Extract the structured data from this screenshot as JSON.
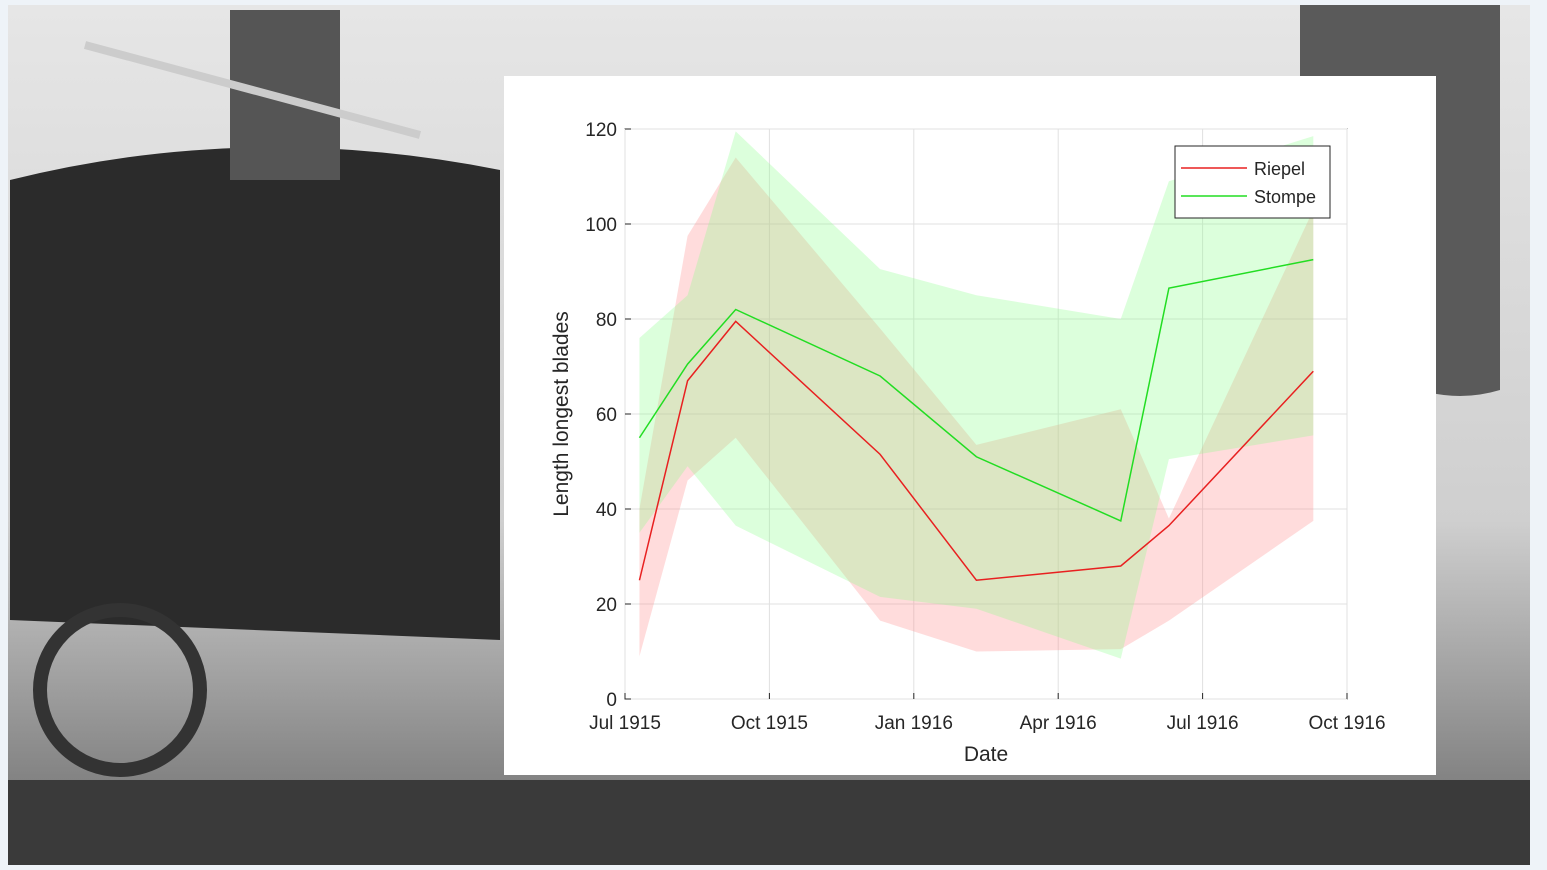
{
  "chart_data": {
    "type": "line-band",
    "x_label": "Date",
    "y_label": "Length longest blades",
    "x": [
      "1915-07",
      "1915-08",
      "1915-09",
      "1915-12",
      "1916-02",
      "1916-05",
      "1916-06",
      "1916-09"
    ],
    "xlim": [
      "1915-07",
      "1916-10"
    ],
    "xticks": [
      {
        "value": "1915-07",
        "label": "Jul 1915"
      },
      {
        "value": "1915-10",
        "label": "Oct 1915"
      },
      {
        "value": "1916-01",
        "label": "Jan 1916"
      },
      {
        "value": "1916-04",
        "label": "Apr 1916"
      },
      {
        "value": "1916-07",
        "label": "Jul 1916"
      },
      {
        "value": "1916-10",
        "label": "Oct 1916"
      }
    ],
    "ylim": [
      0,
      120
    ],
    "yticks": [
      0,
      20,
      40,
      60,
      80,
      100,
      120
    ],
    "grid": true,
    "legend": "upper-right",
    "series": [
      {
        "name": "Riepel",
        "color": "#e82020",
        "band_color": "#ff8c8c",
        "values": [
          25,
          67,
          79.5,
          51.5,
          25,
          28,
          36.5,
          69
        ],
        "lower": [
          9,
          46,
          55,
          16.5,
          10,
          10.5,
          16.5,
          37.5
        ],
        "upper": [
          40,
          97.5,
          114,
          78,
          53.5,
          61,
          38,
          103
        ]
      },
      {
        "name": "Stompe",
        "color": "#22dd22",
        "band_color": "#8cff8c",
        "values": [
          55,
          70.5,
          82,
          68,
          51,
          37.5,
          86.5,
          92.5
        ],
        "lower": [
          35,
          49,
          36.5,
          21.5,
          19,
          8.5,
          50.5,
          55.5
        ],
        "upper": [
          76,
          85,
          119.5,
          90.5,
          85,
          80,
          109,
          118.5
        ]
      }
    ]
  }
}
